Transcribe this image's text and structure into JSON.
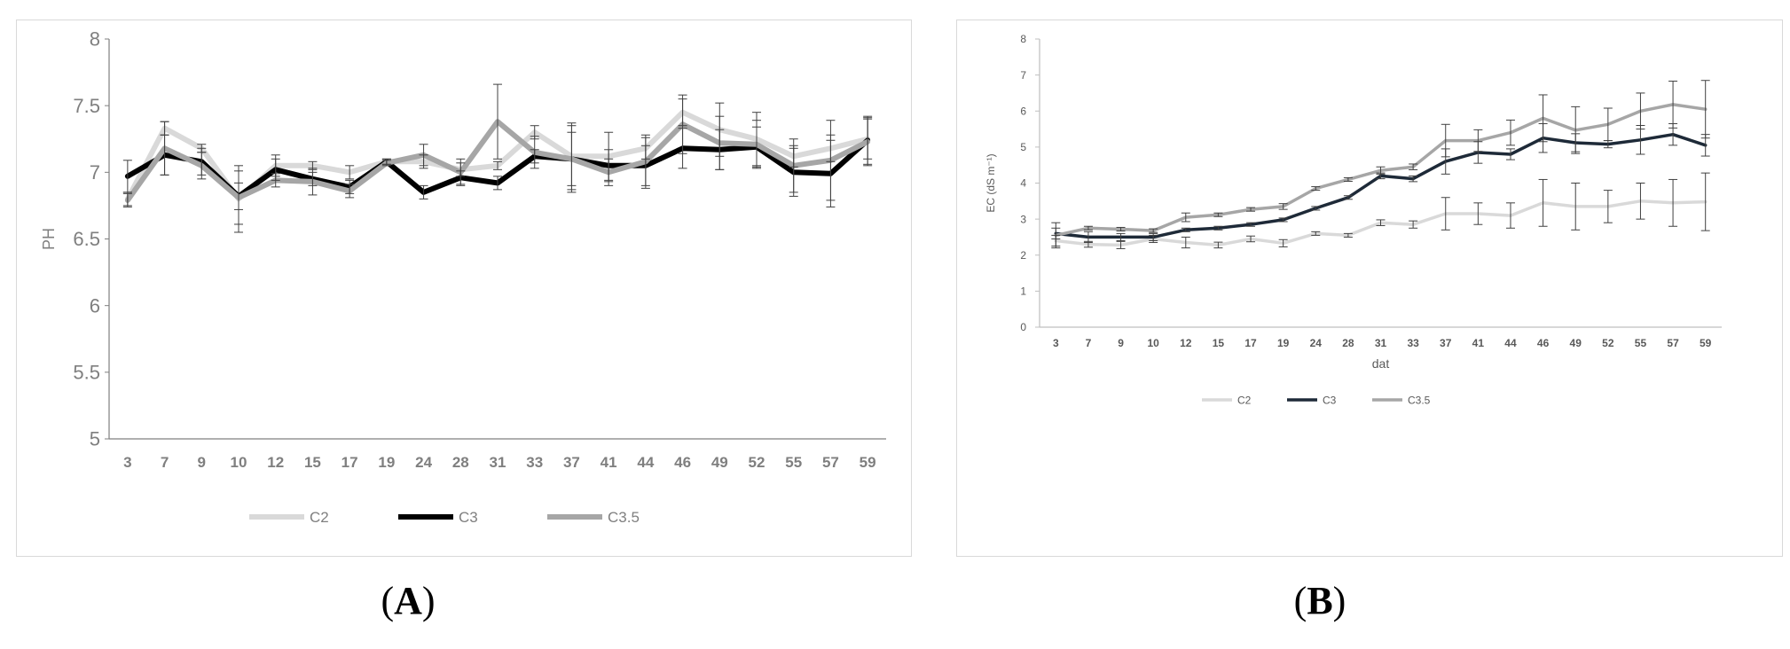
{
  "chart_data": [
    {
      "type": "line",
      "panel_label": "A",
      "ylabel": "PH",
      "xlabel": "",
      "ylim": [
        5,
        8
      ],
      "yticks": [
        "5",
        "5.5",
        "6",
        "6.5",
        "7",
        "7.5",
        "8"
      ],
      "categories": [
        "3",
        "7",
        "9",
        "10",
        "12",
        "15",
        "17",
        "19",
        "24",
        "28",
        "31",
        "33",
        "37",
        "41",
        "44",
        "46",
        "49",
        "52",
        "55",
        "57",
        "59"
      ],
      "legend_position": "bottom-center",
      "series": [
        {
          "name": "C2",
          "color": "#d9d9d9",
          "values": [
            6.8,
            7.33,
            7.18,
            6.8,
            7.05,
            7.05,
            7.0,
            7.08,
            7.08,
            7.02,
            7.05,
            7.3,
            7.12,
            7.12,
            7.18,
            7.45,
            7.32,
            7.25,
            7.12,
            7.18,
            7.25
          ],
          "errors": [
            0.05,
            0.05,
            0.03,
            0.25,
            0.08,
            0.03,
            0.05,
            0.02,
            0.05,
            0.05,
            0.03,
            0.05,
            0.25,
            0.18,
            0.08,
            0.1,
            0.2,
            0.2,
            0.08,
            0.1,
            0.15
          ]
        },
        {
          "name": "C3",
          "color": "#000000",
          "values": [
            6.97,
            7.13,
            7.08,
            6.82,
            7.02,
            6.95,
            6.89,
            7.08,
            6.85,
            6.96,
            6.92,
            7.12,
            7.1,
            7.05,
            7.05,
            7.18,
            7.17,
            7.19,
            7.0,
            6.99,
            7.24
          ],
          "errors": [
            0.12,
            0.15,
            0.1,
            0.1,
            0.08,
            0.05,
            0.05,
            0.02,
            0.05,
            0.05,
            0.05,
            0.05,
            0.25,
            0.12,
            0.15,
            0.15,
            0.15,
            0.15,
            0.18,
            0.25,
            0.18
          ]
        },
        {
          "name": "C3.5",
          "color": "#a6a6a6",
          "values": [
            6.79,
            7.18,
            7.05,
            6.81,
            6.94,
            6.93,
            6.86,
            7.07,
            7.13,
            7.0,
            7.38,
            7.15,
            7.1,
            7.0,
            7.08,
            7.36,
            7.22,
            7.21,
            7.05,
            7.09,
            7.23
          ],
          "errors": [
            0.05,
            0.2,
            0.1,
            0.2,
            0.05,
            0.1,
            0.05,
            0.02,
            0.08,
            0.1,
            0.28,
            0.12,
            0.2,
            0.1,
            0.2,
            0.22,
            0.2,
            0.18,
            0.2,
            0.3,
            0.18
          ]
        }
      ]
    },
    {
      "type": "line",
      "panel_label": "B",
      "ylabel": "EC (dS m⁻¹)",
      "xlabel": "dat",
      "ylim": [
        0,
        8
      ],
      "yticks": [
        "0",
        "1",
        "2",
        "3",
        "4",
        "5",
        "6",
        "7",
        "8"
      ],
      "categories": [
        "3",
        "7",
        "9",
        "10",
        "12",
        "15",
        "17",
        "19",
        "24",
        "28",
        "31",
        "33",
        "37",
        "41",
        "44",
        "46",
        "49",
        "52",
        "55",
        "57",
        "59"
      ],
      "legend_position": "bottom-center",
      "series": [
        {
          "name": "C2",
          "color": "#d9d9d9",
          "values": [
            2.4,
            2.3,
            2.28,
            2.45,
            2.35,
            2.28,
            2.45,
            2.33,
            2.6,
            2.55,
            2.9,
            2.85,
            3.15,
            3.15,
            3.1,
            3.45,
            3.35,
            3.35,
            3.5,
            3.45,
            3.48
          ],
          "errors": [
            0.15,
            0.08,
            0.1,
            0.1,
            0.15,
            0.08,
            0.08,
            0.1,
            0.05,
            0.05,
            0.08,
            0.1,
            0.45,
            0.3,
            0.35,
            0.65,
            0.65,
            0.45,
            0.5,
            0.65,
            0.8
          ]
        },
        {
          "name": "C3",
          "color": "#1e2a38",
          "values": [
            2.6,
            2.5,
            2.5,
            2.5,
            2.7,
            2.75,
            2.85,
            2.98,
            3.3,
            3.6,
            4.2,
            4.12,
            4.6,
            4.85,
            4.8,
            5.25,
            5.12,
            5.08,
            5.2,
            5.35,
            5.05
          ],
          "errors": [
            0.15,
            0.15,
            0.1,
            0.1,
            0.05,
            0.05,
            0.05,
            0.05,
            0.05,
            0.05,
            0.08,
            0.08,
            0.35,
            0.3,
            0.15,
            0.4,
            0.25,
            0.1,
            0.4,
            0.3,
            0.3
          ]
        },
        {
          "name": "C3.5",
          "color": "#a6a6a6",
          "values": [
            2.55,
            2.75,
            2.72,
            2.68,
            3.05,
            3.12,
            3.27,
            3.35,
            3.85,
            4.1,
            4.35,
            4.45,
            5.18,
            5.18,
            5.4,
            5.8,
            5.47,
            5.63,
            6.0,
            6.18,
            6.05
          ],
          "errors": [
            0.35,
            0.05,
            0.05,
            0.05,
            0.12,
            0.05,
            0.05,
            0.08,
            0.05,
            0.05,
            0.1,
            0.08,
            0.45,
            0.3,
            0.35,
            0.65,
            0.65,
            0.45,
            0.5,
            0.65,
            0.8
          ]
        }
      ]
    }
  ]
}
